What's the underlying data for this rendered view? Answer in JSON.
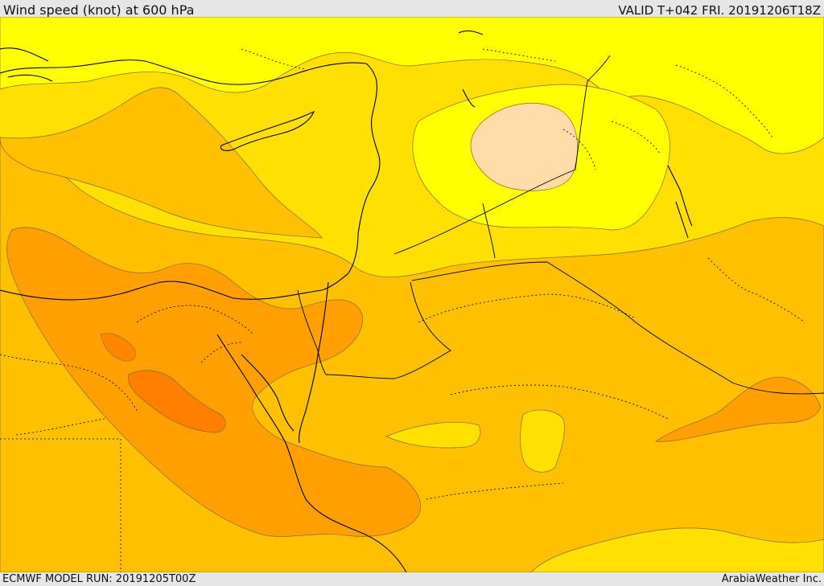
{
  "header": {
    "title": "Wind speed (knot) at 600 hPa",
    "valid_time": "VALID T+042 FRI. 20191206T18Z"
  },
  "footer": {
    "model_run": "ECMWF MODEL RUN: 20191205T00Z",
    "credit": "ArabiaWeather Inc."
  },
  "map": {
    "field": "wind speed",
    "level": "600 hPa",
    "colors": {
      "band_10_20": "#ffff00",
      "band_20_30": "#ffe000",
      "band_30_40": "#ffc000",
      "band_40_50": "#ffa000",
      "band_50_60": "#ff8000",
      "calm": "#ffdca8",
      "contour": "#8a6a2a",
      "coastline": "#000000"
    }
  }
}
